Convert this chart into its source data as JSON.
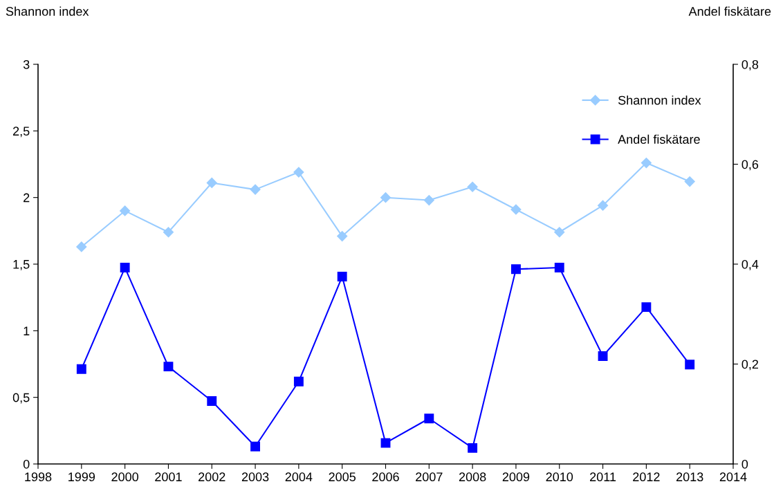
{
  "chart_data": {
    "type": "line",
    "ylabel": "Shannon index",
    "y2label": "Andel fiskätare",
    "x": [
      1999,
      2000,
      2001,
      2002,
      2003,
      2004,
      2005,
      2006,
      2007,
      2008,
      2009,
      2010,
      2011,
      2012,
      2013
    ],
    "series": [
      {
        "name": "Shannon index",
        "color": "#99ccff",
        "marker": "diamond",
        "values": [
          1.63,
          1.9,
          1.74,
          2.11,
          2.06,
          2.19,
          1.71,
          2.0,
          1.98,
          2.08,
          1.91,
          1.74,
          1.94,
          2.26,
          2.12
        ]
      },
      {
        "name": "Andel fiskätare",
        "color": "#0000ff",
        "marker": "square",
        "axis": "y2",
        "values": [
          0.19,
          0.393,
          0.195,
          0.126,
          0.035,
          0.165,
          0.375,
          0.042,
          0.091,
          0.032,
          0.39,
          0.393,
          0.216,
          0.314,
          0.199
        ]
      }
    ],
    "xlim": [
      1998,
      2014
    ],
    "xticks": [
      1998,
      1999,
      2000,
      2001,
      2002,
      2003,
      2004,
      2005,
      2006,
      2007,
      2008,
      2009,
      2010,
      2011,
      2012,
      2013,
      2014
    ],
    "ylim": [
      0,
      3
    ],
    "yticks": [
      0,
      {
        "value": 0.5,
        "label": "0,5"
      },
      1,
      {
        "value": 1.5,
        "label": "1,5"
      },
      2,
      {
        "value": 2.5,
        "label": "2,5"
      },
      3
    ],
    "y2lim": [
      0,
      0.8
    ],
    "y2ticks": [
      0,
      {
        "value": 0.2,
        "label": "0,2"
      },
      {
        "value": 0.4,
        "label": "0,4"
      },
      {
        "value": 0.6,
        "label": "0,6"
      },
      {
        "value": 0.8,
        "label": "0,8"
      }
    ],
    "grid": false,
    "legend": "top right",
    "line_style": "solid"
  }
}
